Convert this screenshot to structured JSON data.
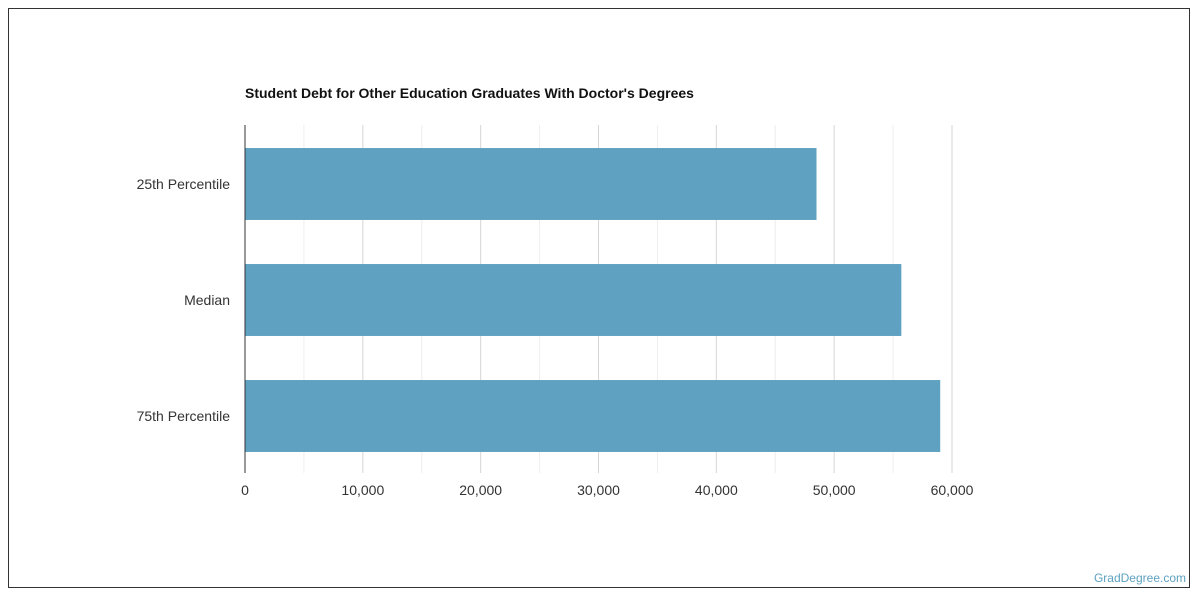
{
  "chart_data": {
    "type": "bar",
    "orientation": "horizontal",
    "title": "Student Debt for Other Education Graduates With Doctor's Degrees",
    "categories": [
      "25th Percentile",
      "Median",
      "75th Percentile"
    ],
    "values": [
      48500,
      55700,
      59000
    ],
    "xlim": [
      0,
      60000
    ],
    "x_ticks": [
      0,
      10000,
      20000,
      30000,
      40000,
      50000,
      60000
    ],
    "x_tick_labels": [
      "0",
      "10,000",
      "20,000",
      "30,000",
      "40,000",
      "50,000",
      "60,000"
    ],
    "grid": true,
    "legend": "none",
    "bar_color": "#5ea1c0"
  },
  "credit": "GradDegree.com"
}
